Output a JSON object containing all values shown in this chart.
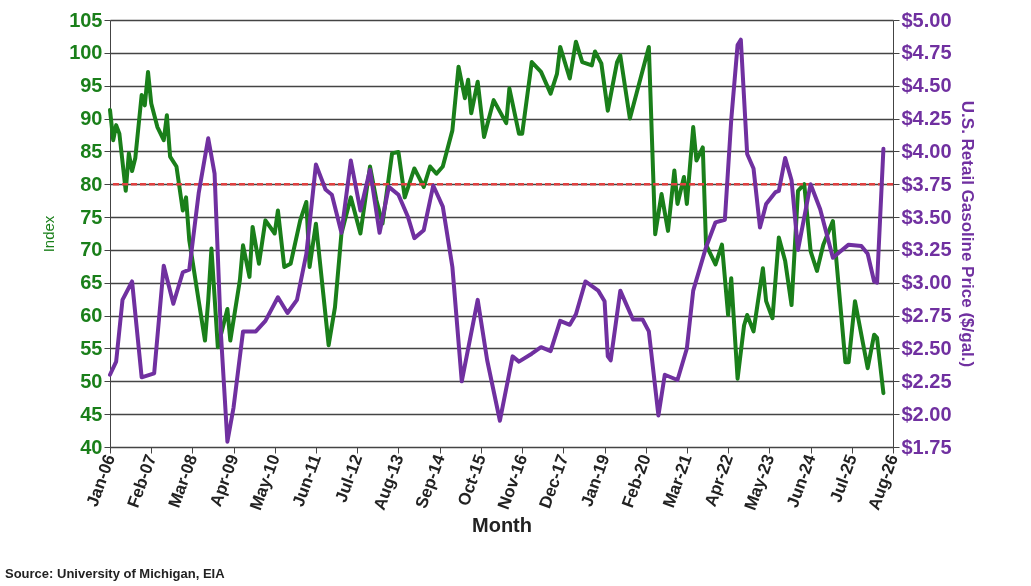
{
  "chart_data": {
    "type": "line",
    "xlabel": "Month",
    "ylabel": "Index",
    "y2label": "U.S. Retail Gasoline Price ($/gal.)",
    "annotations": [
      "Source: University of Michigan, EIA"
    ],
    "grid": "y",
    "marker": "none",
    "line_style": "solid",
    "xlim": [
      "2006-01",
      "2026-08"
    ],
    "xticks": [
      {
        "value": "2006-01",
        "label": "Jan-06"
      },
      {
        "value": "2007-02",
        "label": "Feb-07"
      },
      {
        "value": "2008-03",
        "label": "Mar-08"
      },
      {
        "value": "2009-04",
        "label": "Apr-09"
      },
      {
        "value": "2010-05",
        "label": "May-10"
      },
      {
        "value": "2011-06",
        "label": "Jun-11"
      },
      {
        "value": "2012-07",
        "label": "Jul-12"
      },
      {
        "value": "2013-08",
        "label": "Aug-13"
      },
      {
        "value": "2014-09",
        "label": "Sep-14"
      },
      {
        "value": "2015-10",
        "label": "Oct-15"
      },
      {
        "value": "2016-11",
        "label": "Nov-16"
      },
      {
        "value": "2017-12",
        "label": "Dec-17"
      },
      {
        "value": "2019-01",
        "label": "Jan-19"
      },
      {
        "value": "2020-02",
        "label": "Feb-20"
      },
      {
        "value": "2021-03",
        "label": "Mar-21"
      },
      {
        "value": "2022-04",
        "label": "Apr-22"
      },
      {
        "value": "2023-05",
        "label": "May-23"
      },
      {
        "value": "2024-06",
        "label": "Jun-24"
      },
      {
        "value": "2025-07",
        "label": "Jul-25"
      },
      {
        "value": "2026-08",
        "label": "Aug-26"
      }
    ],
    "ylim": [
      40,
      105
    ],
    "yticks": [
      40,
      45,
      50,
      55,
      60,
      65,
      70,
      75,
      80,
      85,
      90,
      95,
      100,
      105
    ],
    "y2lim": [
      1.75,
      5.0
    ],
    "y2ticks": [
      {
        "value": 1.75,
        "label": "$1.75"
      },
      {
        "value": 2.0,
        "label": "$2.00"
      },
      {
        "value": 2.25,
        "label": "$2.25"
      },
      {
        "value": 2.5,
        "label": "$2.50"
      },
      {
        "value": 2.75,
        "label": "$2.75"
      },
      {
        "value": 3.0,
        "label": "$3.00"
      },
      {
        "value": 3.25,
        "label": "$3.25"
      },
      {
        "value": 3.5,
        "label": "$3.50"
      },
      {
        "value": 3.75,
        "label": "$3.75"
      },
      {
        "value": 4.0,
        "label": "$4.00"
      },
      {
        "value": 4.25,
        "label": "$4.25"
      },
      {
        "value": 4.5,
        "label": "$4.50"
      },
      {
        "value": 4.75,
        "label": "$4.75"
      },
      {
        "value": 5.0,
        "label": "$5.00"
      }
    ],
    "ref_lines": [
      {
        "axis": "y",
        "value": 80,
        "color": "#e04040",
        "line_style": "dashed"
      }
    ],
    "series": [
      {
        "color": "#1a7f1a",
        "x": [
          "2006-01",
          "2006-02",
          "2006-03",
          "2006-04",
          "2006-06",
          "2006-07",
          "2006-08",
          "2006-09",
          "2006-11",
          "2006-12",
          "2007-01",
          "2007-02",
          "2007-04",
          "2007-06",
          "2007-07",
          "2007-08",
          "2007-10",
          "2007-12",
          "2008-01",
          "2008-02",
          "2008-05",
          "2008-07",
          "2008-08",
          "2008-09",
          "2008-11",
          "2009-02",
          "2009-03",
          "2009-06",
          "2009-07",
          "2009-09",
          "2009-10",
          "2009-12",
          "2010-02",
          "2010-05",
          "2010-06",
          "2010-08",
          "2010-10",
          "2011-01",
          "2011-03",
          "2011-04",
          "2011-06",
          "2011-10",
          "2011-12",
          "2012-02",
          "2012-05",
          "2012-08",
          "2012-11",
          "2013-01",
          "2013-03",
          "2013-06",
          "2013-08",
          "2013-10",
          "2014-01",
          "2014-04",
          "2014-06",
          "2014-08",
          "2014-10",
          "2015-01",
          "2015-03",
          "2015-05",
          "2015-06",
          "2015-07",
          "2015-09",
          "2015-11",
          "2016-02",
          "2016-06",
          "2016-07",
          "2016-10",
          "2016-11",
          "2017-02",
          "2017-05",
          "2017-08",
          "2017-10",
          "2017-11",
          "2018-02",
          "2018-04",
          "2018-06",
          "2018-09",
          "2018-10",
          "2018-12",
          "2019-02",
          "2019-05",
          "2019-06",
          "2019-09",
          "2020-03",
          "2020-05",
          "2020-07",
          "2020-09",
          "2020-11",
          "2020-12",
          "2021-02",
          "2021-03",
          "2021-05",
          "2021-06",
          "2021-08",
          "2021-09",
          "2021-12",
          "2022-02",
          "2022-04",
          "2022-05",
          "2022-07",
          "2022-09",
          "2022-10",
          "2022-12",
          "2023-03",
          "2023-04",
          "2023-06",
          "2023-08",
          "2023-10",
          "2023-12",
          "2024-02",
          "2024-04",
          "2024-06",
          "2024-08",
          "2024-10",
          "2025-01",
          "2025-05",
          "2025-06",
          "2025-08",
          "2025-12",
          "2026-02",
          "2026-03",
          "2026-05"
        ],
        "values": [
          91.3,
          86.7,
          89,
          87.7,
          79,
          84.7,
          82,
          84,
          93.6,
          92,
          97.1,
          92.3,
          88.7,
          86.7,
          90.5,
          84.2,
          82.7,
          76,
          78,
          71.5,
          62.3,
          56.2,
          62.3,
          70.2,
          55.2,
          61,
          56.2,
          65.4,
          70.7,
          65.9,
          73.5,
          67.9,
          74.5,
          72.5,
          76,
          67.4,
          67.9,
          74.5,
          77.3,
          67.4,
          74,
          55.5,
          61.3,
          72.5,
          78,
          72.5,
          82.7,
          77.6,
          74,
          84.7,
          84.9,
          78,
          82.4,
          79.6,
          82.7,
          81.6,
          82.7,
          88.2,
          97.9,
          93.1,
          95.9,
          90.8,
          95.6,
          87.2,
          92.8,
          89.3,
          94.6,
          87.7,
          87.7,
          98.6,
          97.1,
          93.8,
          96.8,
          100.9,
          96.1,
          101.7,
          98.6,
          98.1,
          100.2,
          98.4,
          91.2,
          98.6,
          99.6,
          90,
          100.9,
          72.4,
          78.5,
          72.9,
          82.1,
          77,
          81.1,
          77,
          88.7,
          83.6,
          85.6,
          70.8,
          67.8,
          70.8,
          60.1,
          65.7,
          50.4,
          58.5,
          60.1,
          57.6,
          67.2,
          62.2,
          59.6,
          71.9,
          68.3,
          61.6,
          79,
          80,
          69.8,
          66.8,
          70.8,
          74.4,
          52.9,
          52.9,
          62.2,
          52,
          57.1,
          56.6,
          48.2
        ]
      },
      {
        "color": "#7030a0",
        "axis": "y2",
        "x": [
          "2006-01",
          "2006-03",
          "2006-05",
          "2006-08",
          "2006-11",
          "2007-03",
          "2007-06",
          "2007-09",
          "2007-12",
          "2008-02",
          "2008-05",
          "2008-08",
          "2008-10",
          "2008-12",
          "2009-02",
          "2009-04",
          "2009-07",
          "2009-11",
          "2010-02",
          "2010-06",
          "2010-09",
          "2010-12",
          "2011-03",
          "2011-06",
          "2011-09",
          "2011-11",
          "2012-02",
          "2012-05",
          "2012-08",
          "2012-11",
          "2013-02",
          "2013-05",
          "2013-08",
          "2013-11",
          "2014-01",
          "2014-04",
          "2014-07",
          "2014-10",
          "2015-01",
          "2015-04",
          "2015-09",
          "2015-12",
          "2016-04",
          "2016-08",
          "2016-10",
          "2017-02",
          "2017-05",
          "2017-08",
          "2017-11",
          "2018-02",
          "2018-04",
          "2018-07",
          "2018-11",
          "2019-01",
          "2019-02",
          "2019-03",
          "2019-06",
          "2019-08",
          "2019-10",
          "2020-01",
          "2020-03",
          "2020-06",
          "2020-08",
          "2020-12",
          "2021-03",
          "2021-05",
          "2021-09",
          "2021-12",
          "2022-03",
          "2022-05",
          "2022-07",
          "2022-08",
          "2022-10",
          "2022-12",
          "2023-02",
          "2023-04",
          "2023-07",
          "2023-08",
          "2023-10",
          "2023-12",
          "2024-02",
          "2024-06",
          "2024-09",
          "2025-01",
          "2025-03",
          "2025-06",
          "2025-10",
          "2025-12",
          "2026-02",
          "2026-03",
          "2026-05"
        ],
        "values": [
          2.3,
          2.4,
          2.87,
          3.01,
          2.28,
          2.31,
          3.13,
          2.84,
          3.08,
          3.1,
          3.68,
          4.1,
          3.83,
          2.61,
          1.79,
          2.05,
          2.63,
          2.63,
          2.71,
          2.89,
          2.77,
          2.87,
          3.22,
          3.9,
          3.71,
          3.67,
          3.38,
          3.93,
          3.55,
          3.86,
          3.38,
          3.73,
          3.67,
          3.5,
          3.34,
          3.4,
          3.74,
          3.58,
          3.12,
          2.25,
          2.87,
          2.41,
          1.95,
          2.44,
          2.4,
          2.46,
          2.51,
          2.48,
          2.71,
          2.68,
          2.76,
          3.01,
          2.94,
          2.86,
          2.44,
          2.41,
          2.94,
          2.83,
          2.72,
          2.72,
          2.63,
          1.99,
          2.3,
          2.26,
          2.5,
          2.94,
          3.27,
          3.46,
          3.48,
          4.24,
          4.81,
          4.85,
          3.98,
          3.87,
          3.42,
          3.6,
          3.69,
          3.7,
          3.95,
          3.78,
          3.25,
          3.75,
          3.56,
          3.19,
          3.23,
          3.29,
          3.28,
          3.22,
          3.01,
          3.0,
          4.02
        ]
      }
    ]
  }
}
